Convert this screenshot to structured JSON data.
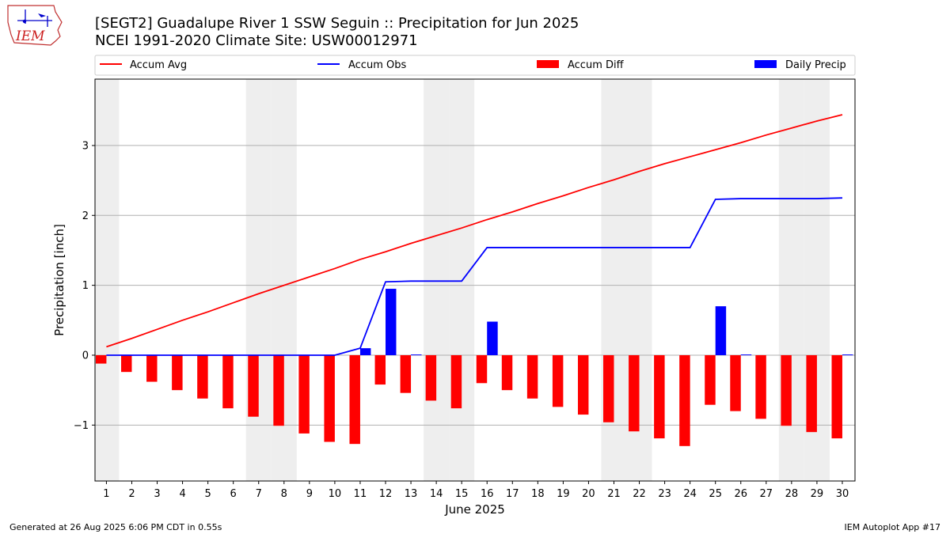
{
  "header": {
    "logo_text": "IEM",
    "title_line1": "[SEGT2] Guadalupe River 1 SSW Seguin :: Precipitation for Jun 2025",
    "title_line2": "NCEI 1991-2020 Climate Site: USW00012971"
  },
  "footer": {
    "left": "Generated at 26 Aug 2025 6:06 PM CDT in 0.55s",
    "right": "IEM Autoplot App #17"
  },
  "colors": {
    "accum_avg": "#ff0000",
    "accum_obs": "#0000ff",
    "accum_diff": "#ff0000",
    "daily_precip": "#0000ff",
    "weekend_band": "#eeeeee",
    "grid": "#b0b0b0"
  },
  "chart_data": {
    "type": "bar",
    "xlabel": "June 2025",
    "ylabel": "Precipitation [inch]",
    "ylim": [
      -1.8,
      3.95
    ],
    "yticks": [
      -1,
      0,
      1,
      2,
      3
    ],
    "x": [
      1,
      2,
      3,
      4,
      5,
      6,
      7,
      8,
      9,
      10,
      11,
      12,
      13,
      14,
      15,
      16,
      17,
      18,
      19,
      20,
      21,
      22,
      23,
      24,
      25,
      26,
      27,
      28,
      29,
      30
    ],
    "grid": "horizontal",
    "legend_placement": "top",
    "legend": [
      "Accum Avg",
      "Accum Obs",
      "Accum Diff",
      "Daily Precip"
    ],
    "weekend_days": [
      1,
      7,
      8,
      14,
      15,
      21,
      22,
      28,
      29
    ],
    "series": [
      {
        "name": "Accum Avg",
        "kind": "line",
        "values": [
          0.12,
          0.24,
          0.37,
          0.5,
          0.62,
          0.75,
          0.88,
          1.0,
          1.12,
          1.24,
          1.37,
          1.48,
          1.6,
          1.71,
          1.82,
          1.94,
          2.05,
          2.17,
          2.28,
          2.4,
          2.51,
          2.63,
          2.74,
          2.84,
          2.94,
          3.04,
          3.15,
          3.25,
          3.35,
          3.44
        ]
      },
      {
        "name": "Accum Obs",
        "kind": "line",
        "values": [
          0,
          0,
          0,
          0,
          0,
          0,
          0,
          0,
          0,
          0,
          0.1,
          1.05,
          1.06,
          1.06,
          1.06,
          1.54,
          1.54,
          1.54,
          1.54,
          1.54,
          1.54,
          1.54,
          1.54,
          1.54,
          2.23,
          2.24,
          2.24,
          2.24,
          2.24,
          2.25
        ]
      },
      {
        "name": "Accum Diff",
        "kind": "bar",
        "values": [
          -0.12,
          -0.24,
          -0.38,
          -0.5,
          -0.62,
          -0.76,
          -0.88,
          -1.01,
          -1.12,
          -1.24,
          -1.27,
          -0.42,
          -0.54,
          -0.65,
          -0.76,
          -0.4,
          -0.5,
          -0.62,
          -0.74,
          -0.85,
          -0.96,
          -1.09,
          -1.19,
          -1.3,
          -0.71,
          -0.8,
          -0.91,
          -1.01,
          -1.1,
          -1.19
        ]
      },
      {
        "name": "Daily Precip",
        "kind": "bar",
        "values": [
          0,
          0,
          0,
          0,
          0,
          0,
          0,
          0,
          0,
          0,
          0.1,
          0.95,
          0.01,
          0,
          0,
          0.48,
          0,
          0,
          0,
          0,
          0,
          0,
          0,
          0,
          0.7,
          0.01,
          0,
          0,
          0,
          0.01
        ]
      }
    ]
  }
}
